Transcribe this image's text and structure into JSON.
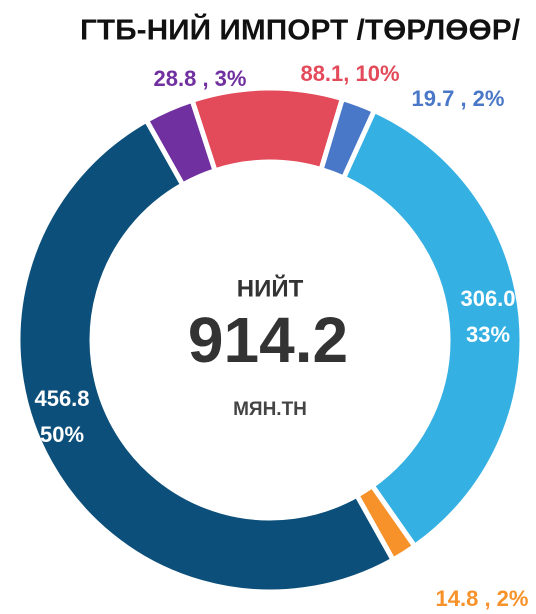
{
  "chart_data": {
    "type": "donut",
    "title": "ГТБ-НИЙ ИМПОРТ /ТӨРЛӨӨР/",
    "values": [
      88.1,
      19.7,
      306.0,
      14.8,
      456.8,
      28.8
    ],
    "value_labels": [
      "88.1, 10%",
      "19.7 , 2%",
      "306.0\n33%",
      "14.8 , 2%",
      "456.8\n50%",
      "28.8 , 3%"
    ],
    "colors": [
      "#e34a5a",
      "#4a78c8",
      "#35b0e3",
      "#f7922a",
      "#0c4f7a",
      "#7030a0"
    ],
    "center": {
      "label": "НИЙТ",
      "total": 914.2,
      "unit": "МЯН.ТН"
    }
  }
}
